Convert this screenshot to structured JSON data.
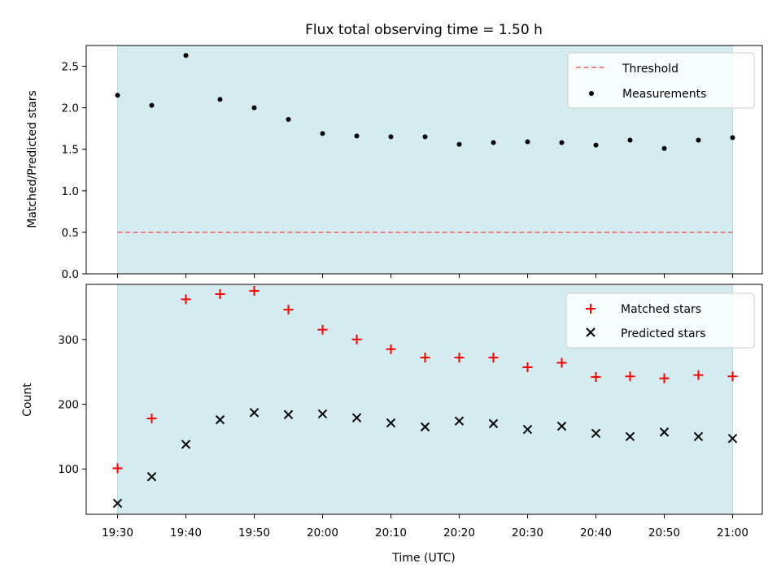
{
  "chart_data": [
    {
      "type": "scatter",
      "panel": "top",
      "title": "Flux total observing time = 1.50 h",
      "ylabel": "Matched/Predicted stars",
      "ylim": [
        0,
        2.75
      ],
      "yticks": [
        "0.0",
        "0.5",
        "1.0",
        "1.5",
        "2.0",
        "2.5"
      ],
      "shaded_span": [
        "19:30",
        "21:00"
      ],
      "x": [
        "19:30",
        "19:35",
        "19:40",
        "19:45",
        "19:50",
        "19:55",
        "20:00",
        "20:05",
        "20:10",
        "20:15",
        "20:20",
        "20:25",
        "20:30",
        "20:35",
        "20:40",
        "20:45",
        "20:50",
        "20:55",
        "21:00"
      ],
      "series": [
        {
          "name": "Measurements",
          "marker": "dot",
          "color": "#000000",
          "values": [
            2.15,
            2.03,
            2.63,
            2.1,
            2.0,
            1.86,
            1.69,
            1.66,
            1.65,
            1.65,
            1.56,
            1.58,
            1.59,
            1.58,
            1.55,
            1.61,
            1.51,
            1.61,
            1.64
          ]
        },
        {
          "name": "Threshold",
          "marker": "dashed-line",
          "color": "#f07070",
          "value": 0.5
        }
      ],
      "legend": {
        "position": "top-right",
        "entries": [
          "Threshold",
          "Measurements"
        ]
      }
    },
    {
      "type": "scatter",
      "panel": "bottom",
      "xlabel": "Time (UTC)",
      "ylabel": "Count",
      "ylim": [
        30,
        385
      ],
      "yticks": [
        "100",
        "200",
        "300"
      ],
      "xticks": [
        "19:30",
        "19:40",
        "19:50",
        "20:00",
        "20:10",
        "20:20",
        "20:30",
        "20:40",
        "20:50",
        "21:00"
      ],
      "shaded_span": [
        "19:30",
        "21:00"
      ],
      "x": [
        "19:30",
        "19:35",
        "19:40",
        "19:45",
        "19:50",
        "19:55",
        "20:00",
        "20:05",
        "20:10",
        "20:15",
        "20:20",
        "20:25",
        "20:30",
        "20:35",
        "20:40",
        "20:45",
        "20:50",
        "20:55",
        "21:00"
      ],
      "series": [
        {
          "name": "Matched stars",
          "marker": "plus",
          "color": "#ff0000",
          "values": [
            101,
            178,
            362,
            370,
            375,
            346,
            315,
            300,
            285,
            272,
            272,
            272,
            257,
            264,
            242,
            243,
            240,
            245,
            243
          ]
        },
        {
          "name": "Predicted stars",
          "marker": "x",
          "color": "#000000",
          "values": [
            47,
            88,
            138,
            176,
            187,
            184,
            185,
            179,
            171,
            165,
            174,
            170,
            161,
            166,
            155,
            150,
            157,
            150,
            147
          ]
        }
      ],
      "legend": {
        "position": "top-right",
        "entries": [
          "Matched stars",
          "Predicted stars"
        ]
      }
    }
  ],
  "colors": {
    "span": "#d4ebf0",
    "threshold": "#f07070",
    "matched": "#ff0000",
    "predicted": "#000000"
  }
}
